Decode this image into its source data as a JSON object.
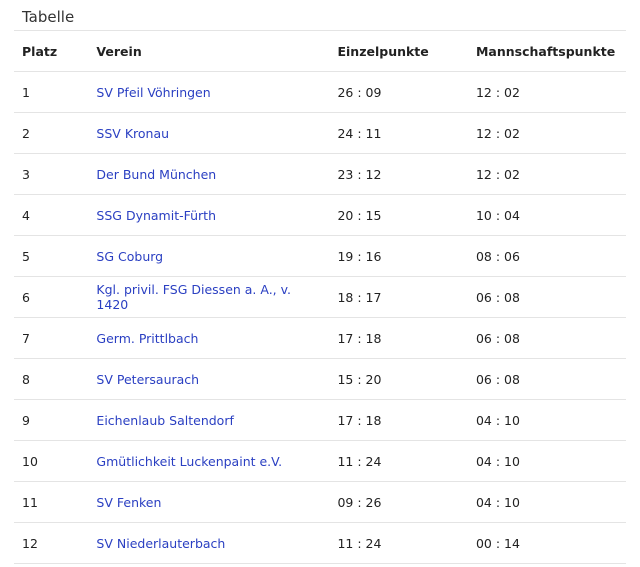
{
  "title": "Tabelle",
  "table": {
    "header": [
      "Platz",
      "Verein",
      "Einzelpunkte",
      "Mannschaftspunkte"
    ],
    "rows": [
      [
        "1",
        "SV Pfeil Vöhringen",
        "26 : 09",
        "12 : 02"
      ],
      [
        "2",
        "SSV Kronau",
        "24 : 11",
        "12 : 02"
      ],
      [
        "3",
        "Der Bund München",
        "23 : 12",
        "12 : 02"
      ],
      [
        "4",
        "SSG Dynamit-Fürth",
        "20 : 15",
        "10 : 04"
      ],
      [
        "5",
        "SG Coburg",
        "19 : 16",
        "08 : 06"
      ],
      [
        "6",
        "Kgl. privil. FSG Diessen a. A., v. 1420",
        "18 : 17",
        "06 : 08"
      ],
      [
        "7",
        "Germ. Prittlbach",
        "17 : 18",
        "06 : 08"
      ],
      [
        "8",
        "SV Petersaurach",
        "15 : 20",
        "06 : 08"
      ],
      [
        "9",
        "Eichenlaub Saltendorf",
        "17 : 18",
        "04 : 10"
      ],
      [
        "10",
        "Gmütlichkeit Luckenpaint e.V.",
        "11 : 24",
        "04 : 10"
      ],
      [
        "11",
        "SV Fenken",
        "09 : 26",
        "04 : 10"
      ],
      [
        "12",
        "SV Niederlauterbach",
        "11 : 24",
        "00 : 14"
      ]
    ]
  }
}
